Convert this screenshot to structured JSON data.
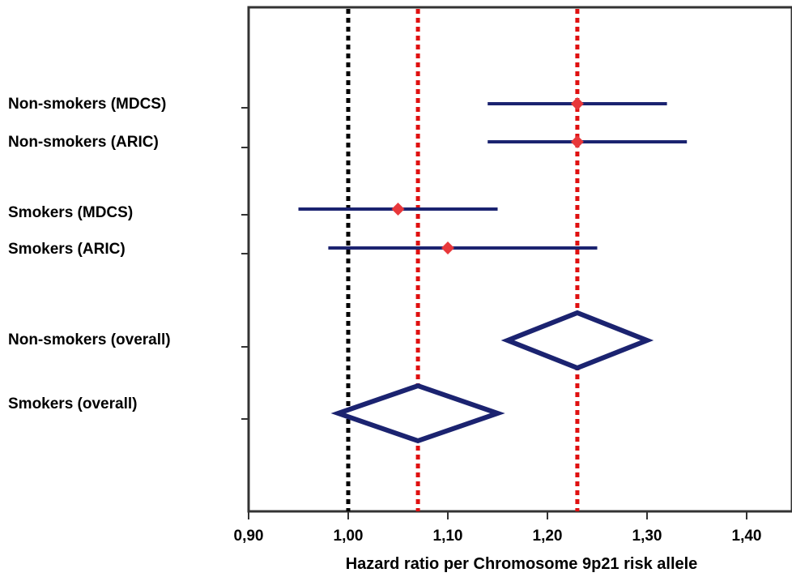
{
  "chart_data": {
    "type": "forest",
    "title": "",
    "xlabel": "Hazard ratio per Chromosome 9p21 risk allele",
    "ylabel": "",
    "xlim": [
      0.9,
      1.45
    ],
    "x_ticks": [
      0.9,
      1.0,
      1.1,
      1.2,
      1.3,
      1.4
    ],
    "x_tick_labels": [
      "0,90",
      "1,00",
      "1,10",
      "1,20",
      "1,30",
      "1,40"
    ],
    "reference_line": 1.0,
    "overall_lines": [
      1.07,
      1.23
    ],
    "studies": [
      {
        "label": "Non-smokers (MDCS)",
        "estimate": 1.23,
        "lower": 1.14,
        "upper": 1.32
      },
      {
        "label": "Non-smokers (ARIC)",
        "estimate": 1.23,
        "lower": 1.14,
        "upper": 1.34
      },
      {
        "label": "Smokers (MDCS)",
        "estimate": 1.05,
        "lower": 0.95,
        "upper": 1.15
      },
      {
        "label": "Smokers (ARIC)",
        "estimate": 1.1,
        "lower": 0.98,
        "upper": 1.25
      }
    ],
    "pooled": [
      {
        "label": "Non-smokers (overall)",
        "estimate": 1.23,
        "lower": 1.16,
        "upper": 1.3
      },
      {
        "label": "Smokers (overall)",
        "estimate": 1.07,
        "lower": 0.99,
        "upper": 1.15
      }
    ],
    "colors": {
      "ci_line": "#1b2370",
      "point": "#e8383b",
      "reference_line": "#000000",
      "overall_line": "#e01010",
      "axis": "#333333"
    }
  }
}
